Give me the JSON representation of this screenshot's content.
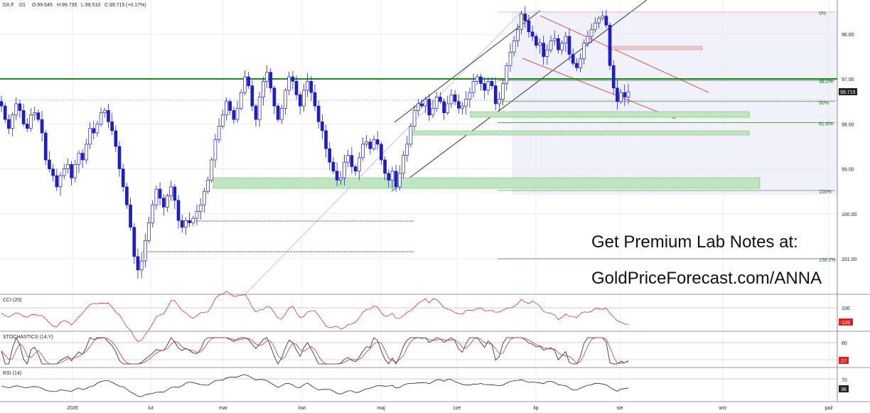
{
  "header": {
    "symbol": "DX.F",
    "timeframe": "D1",
    "open": "O:99.545",
    "high": "H:99.735",
    "low": "L:99.510",
    "close": "C:99.715",
    "change": "(+0.17%)"
  },
  "promo": {
    "line1": "Get Premium Lab Notes at:",
    "line2": "GoldPriceForecast.com/ANNA"
  },
  "price_axis": {
    "ticks": [
      "101.00",
      "100.00",
      "99.00",
      "98.00",
      "97.00",
      "96.00"
    ],
    "last_price": "99.715"
  },
  "fib_labels": [
    "0%",
    "38.2%",
    "50%",
    "61.8%",
    "100%",
    "138.2%"
  ],
  "time_axis": {
    "labels": [
      "2026",
      "lut",
      "mar",
      "kwi",
      "maj",
      "cze",
      "lip",
      "sie",
      "wrz",
      "paź"
    ]
  },
  "indicators": {
    "cci": {
      "name": "CCI (20)",
      "level": "100",
      "value": "-126"
    },
    "stoch": {
      "name": "STOCHASTICS (14,Y)",
      "level": "80",
      "value": "17"
    },
    "rsi": {
      "name": "RSI (14)",
      "level": "70",
      "value": "38"
    }
  },
  "colors": {
    "bull_candle": "#ffffff",
    "bear_candle": "#1f1fbf",
    "candle_outline": "#1f1fbf",
    "support_line": "#1b8a1b",
    "zone_fill": "#a8dca8",
    "channel_line": "#222222",
    "red_channel": "#e05050",
    "fib_line": "#3a7a3a",
    "cci_line": "#e03030",
    "stoch_k": "#222222",
    "stoch_d": "#e03030",
    "rsi_line": "#222222",
    "value_badge_red": "#dd2020"
  },
  "chart_data": {
    "type": "candlestick",
    "symbol": "DX.F",
    "timeframe": "D1",
    "ylim": [
      95.3,
      101.6
    ],
    "y_ticks": [
      96,
      97,
      98,
      99,
      100,
      101
    ],
    "x_labels": [
      "2026",
      "lut",
      "mar",
      "kwi",
      "maj",
      "cze",
      "lip",
      "sie",
      "wrz",
      "paź"
    ],
    "last_close": 99.715,
    "support_level": 100.0,
    "fib_levels": [
      {
        "label": "0%",
        "value": 101.49
      },
      {
        "label": "38.2%",
        "value": 99.97
      },
      {
        "label": "50%",
        "value": 99.5
      },
      {
        "label": "61.8%",
        "value": 99.03
      },
      {
        "label": "100%",
        "value": 97.52
      },
      {
        "label": "138.2%",
        "value": 96.0
      }
    ],
    "closes": [
      99.4,
      99.1,
      98.9,
      99.2,
      99.45,
      99.3,
      99.0,
      98.9,
      99.2,
      99.25,
      99.1,
      98.8,
      98.2,
      98.0,
      97.85,
      97.6,
      97.85,
      98.0,
      98.1,
      97.8,
      98.1,
      98.35,
      98.2,
      98.55,
      98.9,
      98.8,
      99.0,
      99.25,
      99.3,
      99.05,
      98.85,
      98.5,
      98.0,
      97.6,
      97.2,
      96.7,
      96.05,
      95.75,
      95.95,
      96.4,
      96.8,
      97.2,
      97.55,
      97.35,
      97.15,
      97.4,
      97.6,
      97.3,
      96.85,
      96.7,
      96.85,
      96.8,
      96.9,
      97.05,
      97.2,
      97.5,
      97.75,
      98.2,
      98.65,
      98.95,
      99.2,
      99.5,
      99.3,
      99.1,
      99.35,
      99.7,
      100.05,
      99.85,
      99.4,
      99.1,
      99.6,
      99.95,
      100.15,
      99.8,
      99.4,
      99.1,
      99.35,
      99.75,
      100.05,
      99.95,
      99.65,
      99.4,
      99.75,
      99.95,
      99.7,
      99.4,
      99.05,
      98.85,
      98.45,
      98.15,
      97.95,
      97.75,
      97.8,
      98.15,
      98.3,
      98.05,
      97.95,
      98.25,
      98.55,
      98.6,
      98.45,
      98.65,
      98.55,
      98.2,
      97.9,
      97.75,
      97.95,
      97.6,
      97.9,
      98.3,
      98.55,
      98.95,
      99.3,
      99.45,
      99.4,
      99.55,
      99.2,
      99.35,
      99.6,
      99.5,
      99.25,
      99.45,
      99.65,
      99.5,
      99.35,
      99.4,
      99.55,
      99.7,
      99.95,
      100.05,
      99.9,
      99.75,
      99.95,
      99.85,
      99.45,
      99.55,
      99.9,
      100.3,
      100.6,
      100.85,
      101.1,
      101.45,
      101.3,
      101.05,
      100.95,
      100.75,
      100.8,
      100.5,
      100.65,
      100.85,
      100.9,
      100.65,
      100.8,
      100.95,
      100.55,
      100.35,
      100.25,
      100.45,
      100.8,
      100.95,
      101.1,
      101.25,
      101.35,
      101.4,
      101.2,
      100.3,
      99.8,
      99.5,
      99.7,
      99.6,
      99.715
    ]
  }
}
